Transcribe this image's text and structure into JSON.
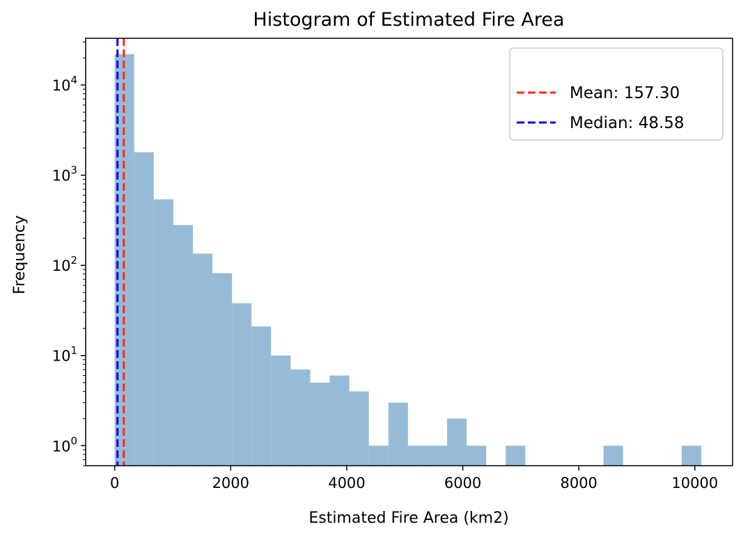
{
  "chart_data": {
    "type": "bar",
    "title": "Histogram of Estimated Fire Area",
    "xlabel": "Estimated Fire Area (km2)",
    "ylabel": "Frequency",
    "y_scale": "log",
    "xlim": [
      -500,
      10650
    ],
    "ylim": [
      0.6,
      33000
    ],
    "x_ticks": [
      0,
      2000,
      4000,
      6000,
      8000,
      10000
    ],
    "y_ticks": [
      {
        "value": 1,
        "base": "10",
        "exp": "0"
      },
      {
        "value": 10,
        "base": "10",
        "exp": "1"
      },
      {
        "value": 100,
        "base": "10",
        "exp": "2"
      },
      {
        "value": 1000,
        "base": "10",
        "exp": "3"
      },
      {
        "value": 10000,
        "base": "10",
        "exp": "4"
      }
    ],
    "bin_edges": [
      0,
      337,
      674,
      1011,
      1348,
      1685,
      2022,
      2359,
      2696,
      3033,
      3370,
      3707,
      4044,
      4381,
      4718,
      5055,
      5392,
      5729,
      6066,
      6403,
      6740,
      7077,
      7414,
      7751,
      8088,
      8425,
      8762,
      9099,
      9436,
      9773,
      10110
    ],
    "counts": [
      22000,
      1800,
      540,
      280,
      135,
      82,
      38,
      21,
      10,
      7,
      5,
      6,
      4,
      1,
      3,
      1,
      1,
      2,
      1,
      0,
      1,
      0,
      0,
      0,
      0,
      1,
      0,
      0,
      0,
      1
    ],
    "bar_color": "#97BAD6",
    "mean_line": {
      "value": 157.3,
      "label": "Mean:  157.30",
      "color": "#ff2a12"
    },
    "median_line": {
      "value": 48.58,
      "label": "Median:  48.58",
      "color": "#0000ff"
    },
    "legend_position": "upper right",
    "grid": false
  }
}
